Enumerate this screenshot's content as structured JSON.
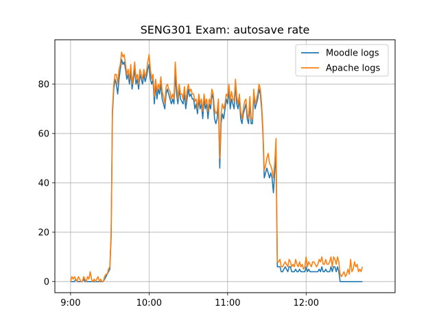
{
  "chart_data": {
    "type": "line",
    "title": "SENG301 Exam: autosave rate",
    "xlabel": "",
    "ylabel": "",
    "x_ticks": [
      "9:00",
      "10:00",
      "11:00",
      "12:00"
    ],
    "x_tick_minutes": [
      0,
      60,
      120,
      180
    ],
    "xlim_minutes": [
      -12,
      248
    ],
    "ylim": [
      -4.5,
      98
    ],
    "y_ticks": [
      0,
      20,
      40,
      60,
      80
    ],
    "grid": true,
    "legend_position": "top-right",
    "x_start_time": "9:00",
    "x_step_minutes": 1,
    "series": [
      {
        "name": "Moodle logs",
        "color": "#1f77b4",
        "values": [
          0,
          0,
          0,
          0,
          1,
          0,
          0,
          0,
          0,
          0,
          1,
          0,
          0,
          0,
          0,
          0,
          0,
          0,
          0,
          0,
          0,
          0,
          0,
          0,
          0,
          0,
          1,
          2,
          3,
          4,
          5,
          18,
          68,
          78,
          82,
          80,
          76,
          82,
          86,
          90,
          88,
          89,
          86,
          82,
          84,
          80,
          85,
          78,
          82,
          86,
          80,
          82,
          78,
          84,
          82,
          80,
          84,
          81,
          83,
          86,
          88,
          82,
          80,
          82,
          72,
          80,
          74,
          78,
          76,
          80,
          74,
          72,
          70,
          76,
          78,
          76,
          74,
          72,
          74,
          72,
          84,
          76,
          72,
          78,
          74,
          73,
          72,
          76,
          70,
          74,
          78,
          75,
          76,
          74,
          74,
          70,
          72,
          68,
          74,
          70,
          72,
          66,
          74,
          70,
          72,
          66,
          72,
          70,
          76,
          74,
          66,
          64,
          66,
          72,
          46,
          64,
          68,
          66,
          70,
          74,
          72,
          78,
          70,
          74,
          72,
          70,
          80,
          72,
          70,
          74,
          66,
          64,
          68,
          70,
          72,
          66,
          64,
          72,
          64,
          64,
          76,
          70,
          72,
          74,
          78,
          76,
          70,
          60,
          42,
          44,
          46,
          44,
          42,
          44,
          42,
          36,
          44,
          52,
          6,
          6,
          6,
          4,
          4,
          5,
          6,
          5,
          4,
          6,
          6,
          4,
          4,
          4,
          5,
          4,
          4,
          5,
          4,
          4,
          4,
          4,
          6,
          4,
          5,
          4,
          4,
          4,
          4,
          4,
          4,
          4,
          5,
          4,
          6,
          4,
          4,
          5,
          4,
          4,
          4,
          6,
          4,
          6,
          6,
          4,
          6,
          4,
          0,
          0,
          0,
          0,
          0,
          0,
          0,
          0,
          0,
          0,
          0,
          0,
          0,
          0,
          0,
          0,
          0,
          0
        ]
      },
      {
        "name": "Apache logs",
        "color": "#ff7f0e",
        "values": [
          0,
          2,
          1,
          2,
          1,
          0,
          2,
          1,
          0,
          0,
          2,
          1,
          0,
          2,
          1,
          4,
          1,
          0,
          1,
          0,
          1,
          2,
          0,
          1,
          0,
          0,
          2,
          3,
          3,
          5,
          6,
          20,
          70,
          80,
          84,
          84,
          80,
          86,
          88,
          93,
          91,
          92,
          88,
          84,
          86,
          82,
          88,
          80,
          84,
          89,
          82,
          84,
          80,
          86,
          84,
          82,
          86,
          83,
          85,
          89,
          92,
          86,
          82,
          84,
          75,
          82,
          77,
          80,
          78,
          83,
          77,
          75,
          72,
          79,
          80,
          78,
          77,
          74,
          76,
          74,
          89,
          80,
          74,
          80,
          76,
          76,
          74,
          79,
          73,
          77,
          80,
          77,
          78,
          76,
          76,
          73,
          74,
          70,
          76,
          72,
          74,
          69,
          76,
          72,
          74,
          69,
          74,
          72,
          78,
          76,
          70,
          68,
          69,
          74,
          50,
          68,
          72,
          70,
          72,
          76,
          75,
          80,
          73,
          77,
          74,
          73,
          82,
          75,
          72,
          76,
          69,
          66,
          70,
          73,
          74,
          68,
          66,
          75,
          66,
          66,
          78,
          72,
          74,
          76,
          80,
          78,
          72,
          62,
          45,
          47,
          50,
          52,
          48,
          47,
          45,
          42,
          48,
          58,
          8,
          8,
          9,
          6,
          6,
          7,
          8,
          7,
          6,
          9,
          8,
          6,
          7,
          6,
          9,
          7,
          6,
          8,
          6,
          7,
          5,
          6,
          10,
          6,
          8,
          7,
          6,
          8,
          8,
          7,
          6,
          7,
          9,
          8,
          10,
          7,
          7,
          9,
          7,
          7,
          8,
          10,
          6,
          10,
          9,
          7,
          10,
          8,
          3,
          2,
          3,
          4,
          2,
          3,
          5,
          3,
          9,
          4,
          5,
          8,
          6,
          7,
          4,
          5,
          4,
          6
        ]
      }
    ]
  }
}
